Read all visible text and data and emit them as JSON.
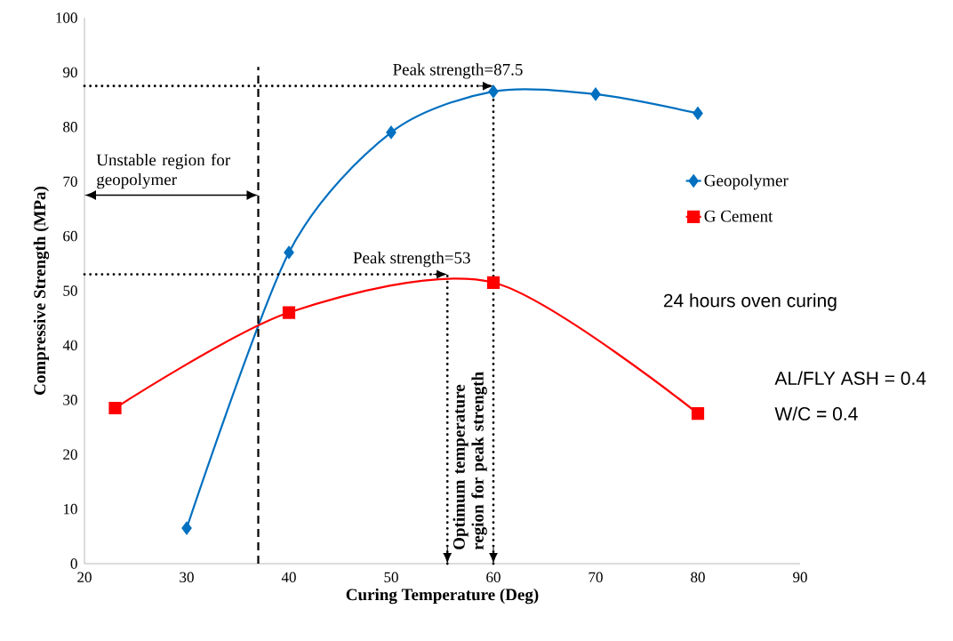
{
  "chart_data": {
    "type": "line",
    "xlabel": "Curing Temperature (Deg)",
    "ylabel": "Compressive Strength (MPa)",
    "xlim": [
      20,
      90
    ],
    "xticks": [
      20,
      30,
      40,
      50,
      60,
      70,
      80,
      90
    ],
    "ylim": [
      0,
      100
    ],
    "yticks": [
      0,
      10,
      20,
      30,
      40,
      50,
      60,
      70,
      80,
      90,
      100
    ],
    "grid": false,
    "legend": "right",
    "line_style": "solid",
    "series": [
      {
        "name": "Geopolymer",
        "color": "#0070c0",
        "marker": "diamond",
        "x": [
          30,
          40,
          50,
          60,
          70,
          80
        ],
        "values": [
          6.5,
          57,
          79,
          86.5,
          86,
          82.5
        ]
      },
      {
        "name": "G Cement",
        "color": "#ff0000",
        "marker": "square",
        "x": [
          23,
          40,
          60,
          80
        ],
        "values": [
          28.5,
          46,
          51.5,
          27.5
        ]
      }
    ],
    "ref_lines": [
      {
        "axis": "y",
        "value": 87.5,
        "label": "Peak strength=87.5",
        "line_style": "dotted"
      },
      {
        "axis": "y",
        "value": 53,
        "label": "Peak strength=53",
        "line_style": "dotted"
      },
      {
        "axis": "x",
        "value": 37,
        "line_style": "dashed"
      },
      {
        "axis": "x",
        "value": 55.5,
        "label": "Optimum temperature region for peak strength",
        "line_style": "dotted"
      },
      {
        "axis": "x",
        "value": 60,
        "line_style": "dotted"
      }
    ],
    "annotations": [
      "Unstable region for geopolymer",
      "24 hours oven curing",
      "AL/FLY ASH = 0.4",
      "W/C = 0.4"
    ]
  }
}
